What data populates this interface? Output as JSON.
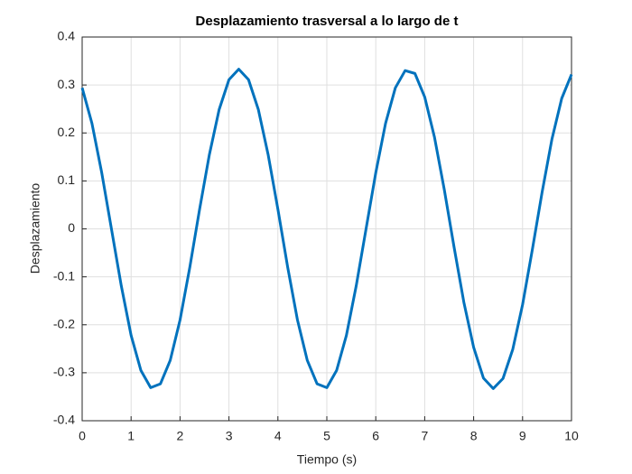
{
  "chart_data": {
    "type": "line",
    "title": "Desplazamiento trasversal a lo largo de t",
    "x_label": "Tiempo (s)",
    "y_label": "Desplazamiento",
    "xlim": [
      0,
      10
    ],
    "ylim": [
      -0.4,
      0.4
    ],
    "xticks": [
      0,
      1,
      2,
      3,
      4,
      5,
      6,
      7,
      8,
      9,
      10
    ],
    "yticks": [
      -0.4,
      -0.3,
      -0.2,
      -0.1,
      0,
      0.1,
      0.2,
      0.3,
      0.4
    ],
    "grid": true,
    "x": [
      0,
      0.2,
      0.4,
      0.6,
      0.8,
      1,
      1.2,
      1.4,
      1.6,
      1.8,
      2,
      2.2,
      2.4,
      2.6,
      2.8,
      3,
      3.2,
      3.4,
      3.6,
      3.8,
      4,
      4.2,
      4.4,
      4.6,
      4.8,
      5,
      5.2,
      5.4,
      5.6,
      5.8,
      6,
      6.2,
      6.4,
      6.6,
      6.8,
      7,
      7.2,
      7.4,
      7.6,
      7.8,
      8,
      8.2,
      8.4,
      8.6,
      8.8,
      9,
      9.2,
      9.4,
      9.6,
      9.8,
      10
    ],
    "series": [
      {
        "color": "#0072bd",
        "values": [
          0.294,
          0.22,
          0.117,
          -0.001,
          -0.119,
          -0.222,
          -0.295,
          -0.331,
          -0.323,
          -0.274,
          -0.19,
          -0.08,
          0.041,
          0.155,
          0.249,
          0.311,
          0.333,
          0.311,
          0.249,
          0.155,
          0.041,
          -0.08,
          -0.19,
          -0.274,
          -0.323,
          -0.331,
          -0.295,
          -0.222,
          -0.119,
          -0.001,
          0.117,
          0.22,
          0.294,
          0.33,
          0.324,
          0.275,
          0.191,
          0.082,
          -0.038,
          -0.153,
          -0.247,
          -0.311,
          -0.333,
          -0.312,
          -0.251,
          -0.158,
          -0.043,
          0.077,
          0.187,
          0.272,
          0.322
        ]
      }
    ]
  }
}
